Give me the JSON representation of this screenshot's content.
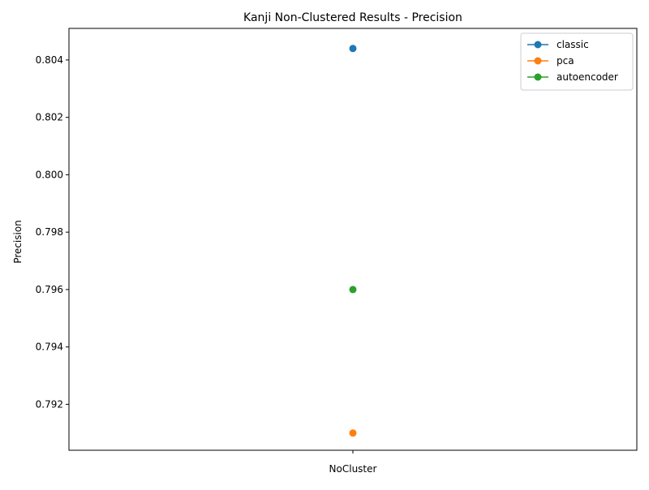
{
  "chart_data": {
    "type": "line",
    "title": "Kanji Non-Clustered Results - Precision",
    "xlabel": "",
    "ylabel": "Precision",
    "categories": [
      "NoCluster"
    ],
    "ylim": [
      0.7904,
      0.8051
    ],
    "yticks": [
      0.792,
      0.794,
      0.796,
      0.798,
      0.8,
      0.802,
      0.804
    ],
    "ytick_labels": [
      "0.792",
      "0.794",
      "0.796",
      "0.798",
      "0.800",
      "0.802",
      "0.804"
    ],
    "grid": false,
    "legend_position": "top-right",
    "marker": "circle",
    "series": [
      {
        "name": "classic",
        "color": "#1f77b4",
        "values": [
          0.8044
        ]
      },
      {
        "name": "pca",
        "color": "#ff7f0e",
        "values": [
          0.791
        ]
      },
      {
        "name": "autoencoder",
        "color": "#2ca02c",
        "values": [
          0.796
        ]
      }
    ]
  }
}
